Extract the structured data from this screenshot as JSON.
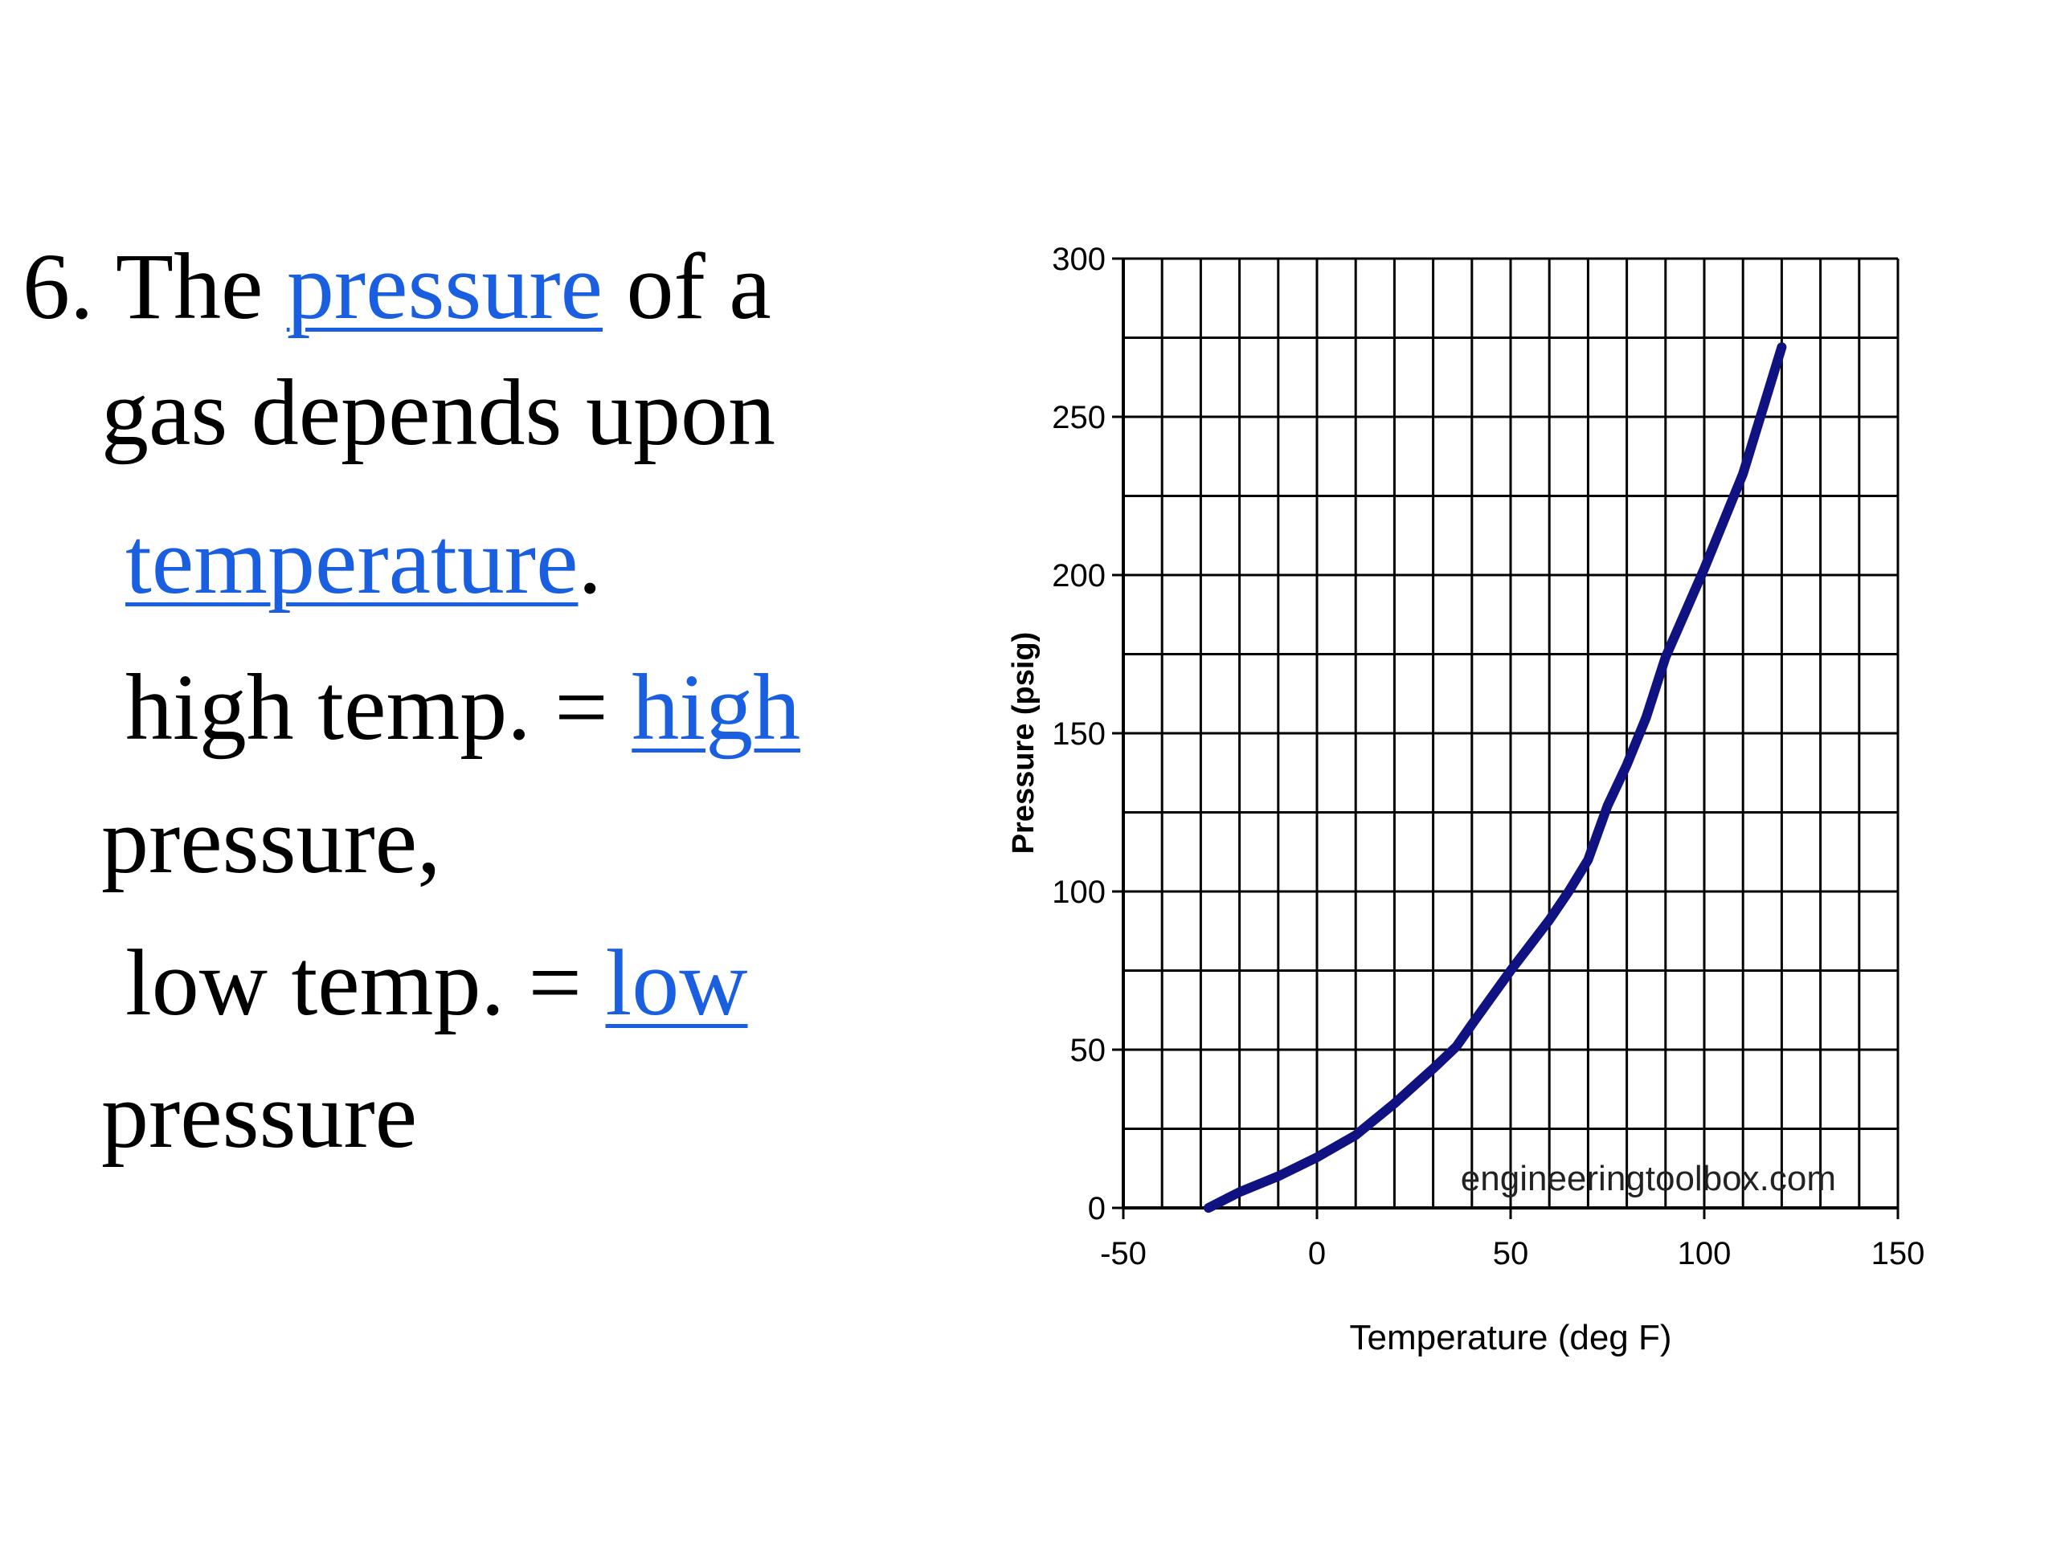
{
  "slide": {
    "item_number": "6.",
    "line1_pre": " The ",
    "line1_link": "pressure",
    "line1_post": " of a",
    "line2": "gas depends upon",
    "line3_link": "temperature",
    "line3_post": ".",
    "line4_pre": "high temp. = ",
    "line4_link": "high",
    "line5": "pressure,",
    "line6_pre": "low temp. = ",
    "line6_link": "low",
    "line7": "pressure"
  },
  "colors": {
    "text": "#000000",
    "link": "#1a5fe0",
    "curve": "#0f1280",
    "grid": "#000000"
  },
  "chart_data": {
    "type": "line",
    "title": "",
    "xlabel": "Temperature (deg F)",
    "ylabel": "Pressure (psig)",
    "xlim": [
      -50,
      150
    ],
    "ylim": [
      0,
      300
    ],
    "xticks": [
      -50,
      0,
      50,
      100,
      150
    ],
    "yticks": [
      0,
      50,
      100,
      150,
      200,
      250,
      300
    ],
    "grid": true,
    "watermark": "engineeringtoolbox.com",
    "series": [
      {
        "x": [
          -28,
          -20,
          -10,
          0,
          10,
          20,
          30,
          36,
          40,
          50,
          60,
          65,
          70,
          75,
          80,
          85,
          90,
          95,
          100,
          105,
          110,
          115,
          120
        ],
        "values": [
          0,
          5,
          10,
          16,
          23,
          33,
          44,
          51,
          58,
          75,
          91,
          100,
          110,
          127,
          140,
          155,
          174,
          188,
          202,
          217,
          232,
          252,
          272
        ]
      }
    ]
  }
}
